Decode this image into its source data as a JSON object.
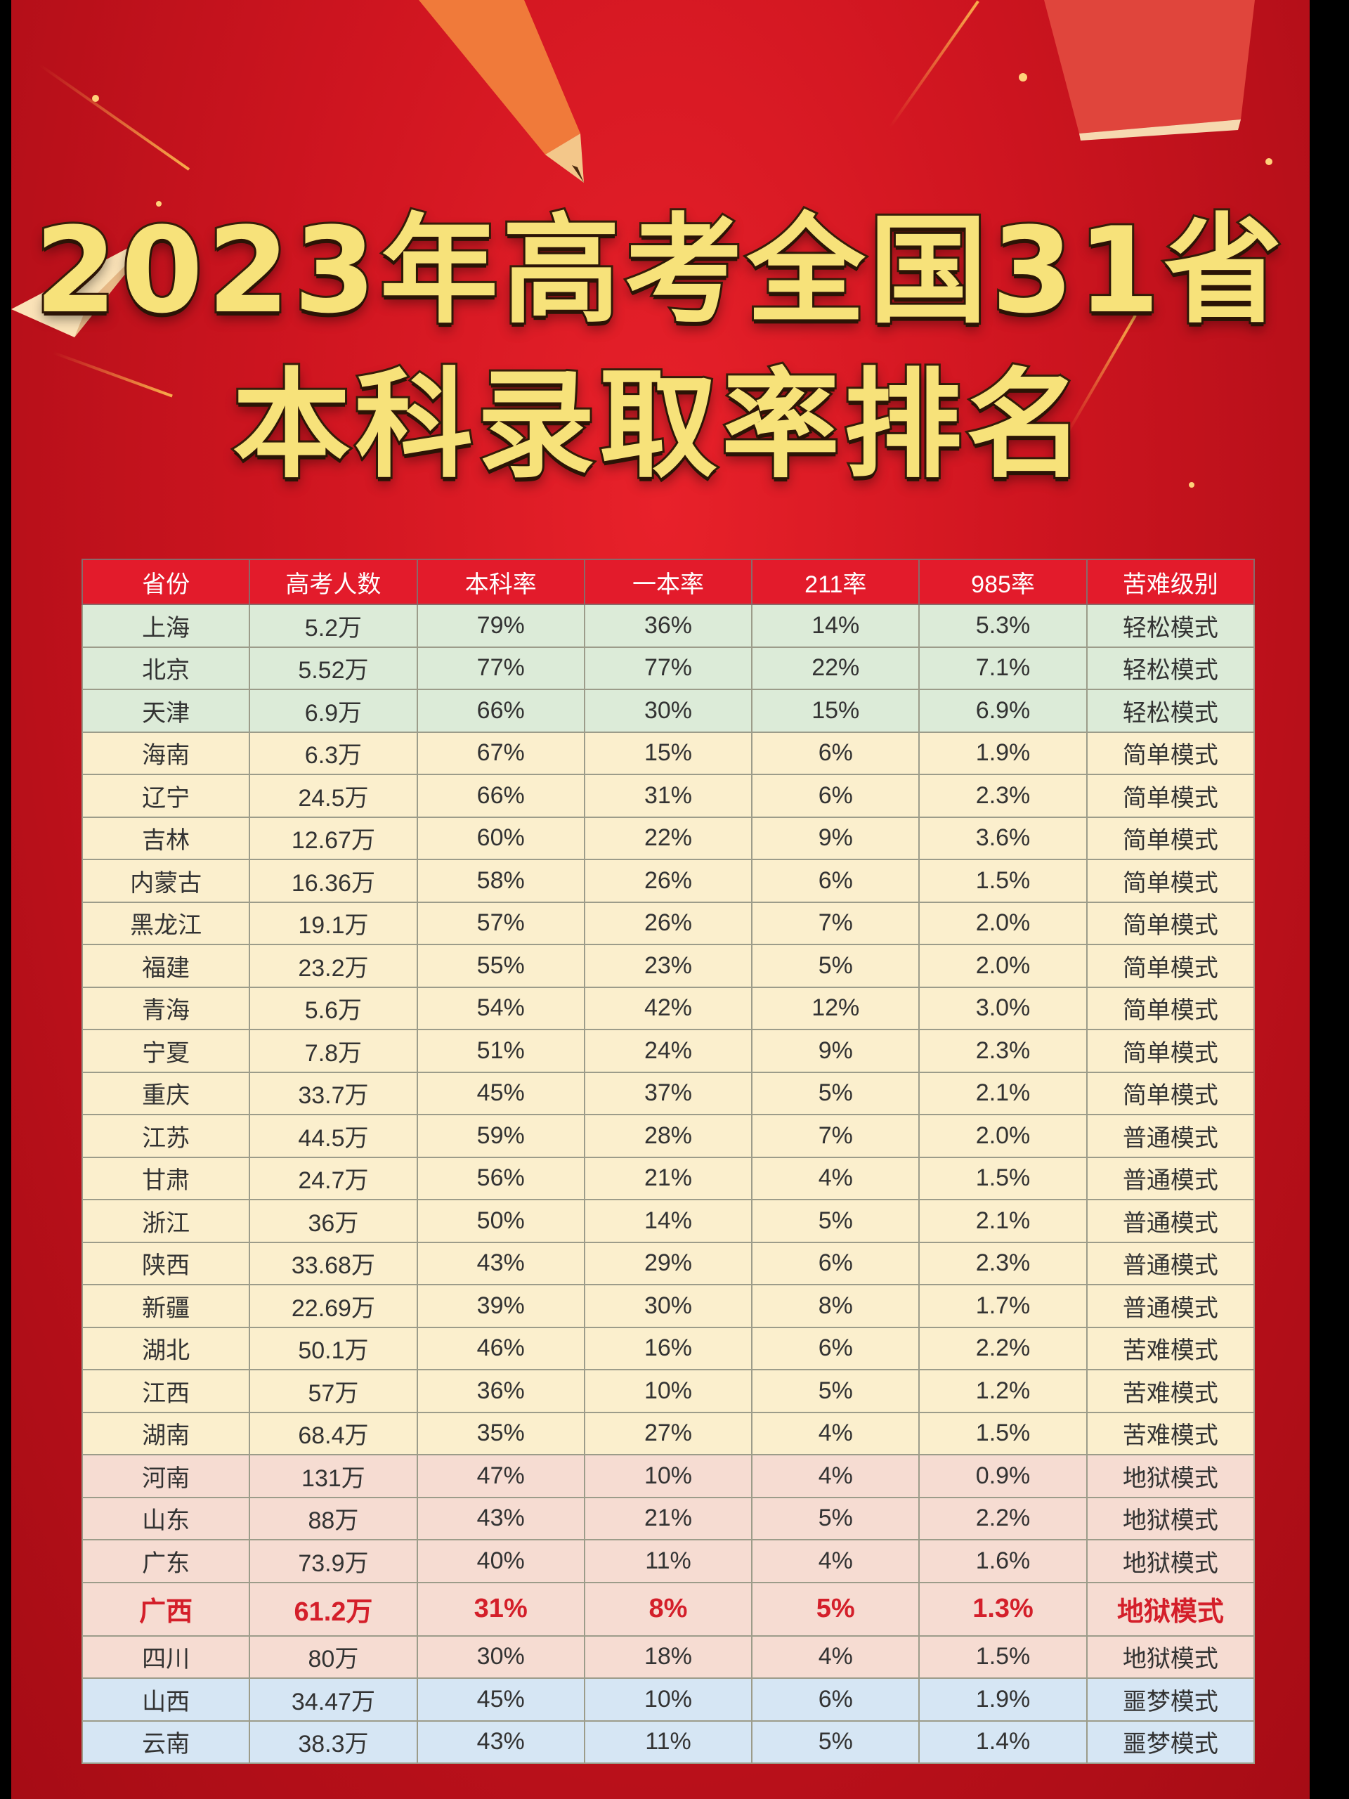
{
  "title": {
    "line1": "2023年高考全国31省",
    "line2": "本科录取率排名"
  },
  "colors": {
    "background": "#cf1520",
    "header": "#e31b2b",
    "easy_green": "#dcebd8",
    "simple_yellow": "#fbefcd",
    "hell_pink": "#f6dcd2",
    "nightmare_blue": "#d6e6f4",
    "highlight": "#d41f2a"
  },
  "table": {
    "headers": [
      "省份",
      "高考人数",
      "本科率",
      "一本率",
      "211率",
      "985率",
      "苦难级别"
    ],
    "rows": [
      {
        "tone": "g",
        "cells": [
          "上海",
          "5.2万",
          "79%",
          "36%",
          "14%",
          "5.3%",
          "轻松模式"
        ]
      },
      {
        "tone": "g",
        "cells": [
          "北京",
          "5.52万",
          "77%",
          "77%",
          "22%",
          "7.1%",
          "轻松模式"
        ]
      },
      {
        "tone": "g",
        "cells": [
          "天津",
          "6.9万",
          "66%",
          "30%",
          "15%",
          "6.9%",
          "轻松模式"
        ]
      },
      {
        "tone": "y",
        "cells": [
          "海南",
          "6.3万",
          "67%",
          "15%",
          "6%",
          "1.9%",
          "简单模式"
        ]
      },
      {
        "tone": "y",
        "cells": [
          "辽宁",
          "24.5万",
          "66%",
          "31%",
          "6%",
          "2.3%",
          "简单模式"
        ]
      },
      {
        "tone": "y",
        "cells": [
          "吉林",
          "12.67万",
          "60%",
          "22%",
          "9%",
          "3.6%",
          "简单模式"
        ]
      },
      {
        "tone": "y",
        "cells": [
          "内蒙古",
          "16.36万",
          "58%",
          "26%",
          "6%",
          "1.5%",
          "简单模式"
        ]
      },
      {
        "tone": "y",
        "cells": [
          "黑龙江",
          "19.1万",
          "57%",
          "26%",
          "7%",
          "2.0%",
          "简单模式"
        ]
      },
      {
        "tone": "y",
        "cells": [
          "福建",
          "23.2万",
          "55%",
          "23%",
          "5%",
          "2.0%",
          "简单模式"
        ]
      },
      {
        "tone": "y",
        "cells": [
          "青海",
          "5.6万",
          "54%",
          "42%",
          "12%",
          "3.0%",
          "简单模式"
        ]
      },
      {
        "tone": "y",
        "cells": [
          "宁夏",
          "7.8万",
          "51%",
          "24%",
          "9%",
          "2.3%",
          "简单模式"
        ]
      },
      {
        "tone": "y",
        "cells": [
          "重庆",
          "33.7万",
          "45%",
          "37%",
          "5%",
          "2.1%",
          "简单模式"
        ]
      },
      {
        "tone": "y",
        "cells": [
          "江苏",
          "44.5万",
          "59%",
          "28%",
          "7%",
          "2.0%",
          "普通模式"
        ]
      },
      {
        "tone": "y",
        "cells": [
          "甘肃",
          "24.7万",
          "56%",
          "21%",
          "4%",
          "1.5%",
          "普通模式"
        ]
      },
      {
        "tone": "y",
        "cells": [
          "浙江",
          "36万",
          "50%",
          "14%",
          "5%",
          "2.1%",
          "普通模式"
        ]
      },
      {
        "tone": "y",
        "cells": [
          "陕西",
          "33.68万",
          "43%",
          "29%",
          "6%",
          "2.3%",
          "普通模式"
        ]
      },
      {
        "tone": "y",
        "cells": [
          "新疆",
          "22.69万",
          "39%",
          "30%",
          "8%",
          "1.7%",
          "普通模式"
        ]
      },
      {
        "tone": "y",
        "cells": [
          "湖北",
          "50.1万",
          "46%",
          "16%",
          "6%",
          "2.2%",
          "苦难模式"
        ]
      },
      {
        "tone": "y",
        "cells": [
          "江西",
          "57万",
          "36%",
          "10%",
          "5%",
          "1.2%",
          "苦难模式"
        ]
      },
      {
        "tone": "y",
        "cells": [
          "湖南",
          "68.4万",
          "35%",
          "27%",
          "4%",
          "1.5%",
          "苦难模式"
        ]
      },
      {
        "tone": "p",
        "cells": [
          "河南",
          "131万",
          "47%",
          "10%",
          "4%",
          "0.9%",
          "地狱模式"
        ]
      },
      {
        "tone": "p",
        "cells": [
          "山东",
          "88万",
          "43%",
          "21%",
          "5%",
          "2.2%",
          "地狱模式"
        ]
      },
      {
        "tone": "p",
        "cells": [
          "广东",
          "73.9万",
          "40%",
          "11%",
          "4%",
          "1.6%",
          "地狱模式"
        ]
      },
      {
        "tone": "hl",
        "cells": [
          "广西",
          "61.2万",
          "31%",
          "8%",
          "5%",
          "1.3%",
          "地狱模式"
        ]
      },
      {
        "tone": "p",
        "cells": [
          "四川",
          "80万",
          "30%",
          "18%",
          "4%",
          "1.5%",
          "地狱模式"
        ]
      },
      {
        "tone": "b",
        "cells": [
          "山西",
          "34.47万",
          "45%",
          "10%",
          "6%",
          "1.9%",
          "噩梦模式"
        ]
      },
      {
        "tone": "b",
        "cells": [
          "云南",
          "38.3万",
          "43%",
          "11%",
          "5%",
          "1.4%",
          "噩梦模式"
        ]
      }
    ]
  }
}
